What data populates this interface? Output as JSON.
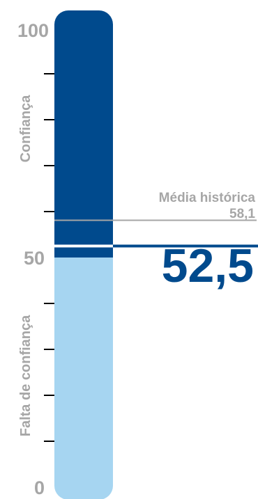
{
  "chart_data": {
    "type": "bar",
    "ylim": [
      0,
      100
    ],
    "y_tick_labels": [
      "100",
      "50",
      "0"
    ],
    "minor_tick_step": 10,
    "zones": {
      "upper_label": "Confiança",
      "lower_label": "Falta de confiança"
    },
    "historical_average": {
      "label": "Média histórica",
      "value_label": "58,1",
      "value": 58.1
    },
    "current": {
      "value_label": "52,5",
      "value": 52.5
    },
    "colors": {
      "upper": "#004a8d",
      "lower": "#a6d5f1",
      "text_blue": "#004a8d",
      "text_gray": "#a6a6a6",
      "average_line": "#a6a6a6",
      "tick": "#000000"
    }
  }
}
